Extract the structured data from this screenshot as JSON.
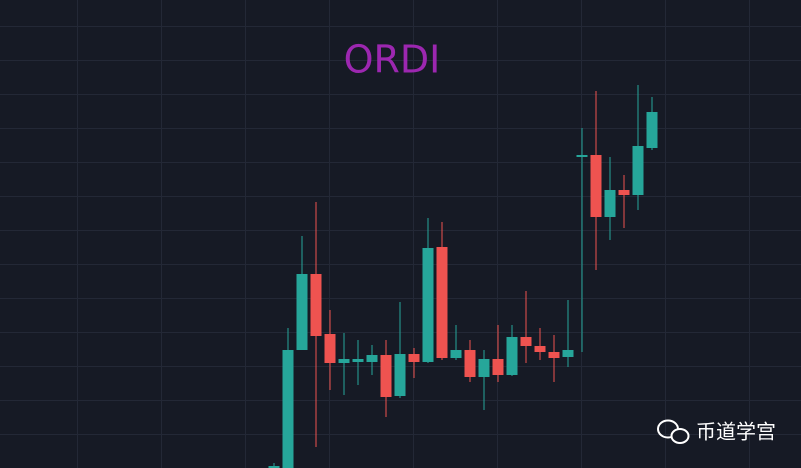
{
  "chart_data": {
    "type": "candlestick",
    "title": "ORDI",
    "categories": [
      null,
      null,
      null,
      null,
      null,
      null,
      null,
      null,
      null,
      null,
      null,
      null,
      null,
      null,
      null,
      null,
      null,
      null,
      null,
      null,
      null,
      null,
      null,
      null,
      null,
      null,
      null,
      null
    ],
    "series": [
      {
        "name": "open",
        "values": [
          0,
          0,
          118,
          194,
          134,
          105,
          106,
          106,
          113,
          72,
          114,
          106,
          221,
          110,
          118,
          91,
          109,
          93,
          131,
          122,
          116,
          111,
          311,
          313,
          251,
          278,
          273,
          320
        ]
      },
      {
        "name": "high",
        "values": [
          5,
          140,
          232,
          266,
          158,
          135,
          128,
          123,
          128,
          166,
          120,
          250,
          246,
          143,
          128,
          118,
          143,
          143,
          177,
          140,
          133,
          168,
          340,
          377,
          311,
          293,
          383,
          371
        ]
      },
      {
        "name": "low",
        "values": [
          0,
          0,
          118,
          21,
          78,
          73,
          83,
          93,
          51,
          70,
          90,
          105,
          108,
          108,
          86,
          58,
          86,
          92,
          105,
          108,
          86,
          101,
          116,
          198,
          228,
          240,
          258,
          318
        ]
      },
      {
        "name": "close",
        "values": [
          2,
          118,
          194,
          132,
          105,
          109,
          109,
          113,
          71,
          114,
          106,
          220,
          110,
          118,
          91,
          109,
          93,
          131,
          122,
          116,
          110,
          118,
          313,
          251,
          278,
          273,
          322,
          356
        ]
      }
    ],
    "ylim": [
      0,
      468
    ],
    "up_color": "#26a69a",
    "down_color": "#ef5350",
    "title_color": "#9c27b0"
  },
  "watermark": "币道学宫"
}
